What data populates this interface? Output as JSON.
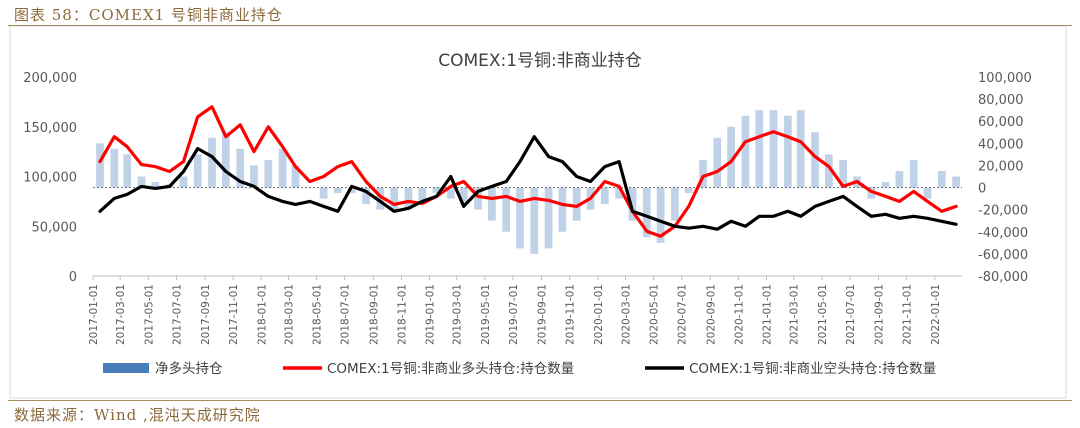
{
  "caption": "图表 58：COMEX1 号铜非商业持仓",
  "source": "数据来源：Wind ,混沌天成研究院",
  "chart_data": {
    "type": "line",
    "title": "COMEX:1号铜:非商业持仓",
    "y_left": {
      "min": 0,
      "max": 200000,
      "ticks": [
        "0",
        "50,000",
        "100,000",
        "150,000",
        "200,000"
      ]
    },
    "y_right": {
      "min": -80000,
      "max": 100000,
      "ticks": [
        "-80,000",
        "-60,000",
        "-40,000",
        "-20,000",
        "0",
        "20,000",
        "40,000",
        "60,000",
        "80,000",
        "100,000"
      ]
    },
    "x_labels": [
      "2017-01-01",
      "2017-03-01",
      "2017-05-01",
      "2017-07-01",
      "2017-09-01",
      "2017-11-01",
      "2018-01-01",
      "2018-03-01",
      "2018-05-01",
      "2018-07-01",
      "2018-09-01",
      "2018-11-01",
      "2019-01-01",
      "2019-03-01",
      "2019-05-01",
      "2019-07-01",
      "2019-09-01",
      "2019-11-01",
      "2020-01-01",
      "2020-03-01",
      "2020-05-01",
      "2020-07-01",
      "2020-09-01",
      "2020-11-01",
      "2021-01-01",
      "2021-03-01",
      "2021-05-01",
      "2021-07-01",
      "2021-09-01",
      "2021-11-01",
      "2022-01-01"
    ],
    "x_range": [
      "2017-01-01",
      "2022-03-01"
    ],
    "colors": {
      "net": "#4a7ebb",
      "long": "#ff0000",
      "short": "#000000"
    },
    "series": [
      {
        "name": "净多头持仓",
        "axis": "right",
        "style": "bar",
        "x": [
          "2017-01",
          "2017-02",
          "2017-03",
          "2017-04",
          "2017-05",
          "2017-06",
          "2017-07",
          "2017-08",
          "2017-09",
          "2017-10",
          "2017-11",
          "2017-12",
          "2018-01",
          "2018-02",
          "2018-03",
          "2018-04",
          "2018-05",
          "2018-06",
          "2018-07",
          "2018-08",
          "2018-09",
          "2018-10",
          "2018-11",
          "2018-12",
          "2019-01",
          "2019-02",
          "2019-03",
          "2019-04",
          "2019-05",
          "2019-06",
          "2019-07",
          "2019-08",
          "2019-09",
          "2019-10",
          "2019-11",
          "2019-12",
          "2020-01",
          "2020-02",
          "2020-03",
          "2020-04",
          "2020-05",
          "2020-06",
          "2020-07",
          "2020-08",
          "2020-09",
          "2020-10",
          "2020-11",
          "2020-12",
          "2021-01",
          "2021-02",
          "2021-03",
          "2021-04",
          "2021-05",
          "2021-06",
          "2021-07",
          "2021-08",
          "2021-09",
          "2021-10",
          "2021-11",
          "2021-12",
          "2022-01",
          "2022-02"
        ],
        "values": [
          40000,
          35000,
          30000,
          10000,
          5000,
          3000,
          10000,
          30000,
          45000,
          50000,
          35000,
          20000,
          25000,
          35000,
          20000,
          0,
          -10000,
          -5000,
          -5000,
          -15000,
          -20000,
          -20000,
          -20000,
          -15000,
          -5000,
          -10000,
          -15000,
          -20000,
          -30000,
          -40000,
          -55000,
          -60000,
          -55000,
          -40000,
          -30000,
          -20000,
          -15000,
          -10000,
          -30000,
          -45000,
          -50000,
          -30000,
          -5000,
          25000,
          45000,
          55000,
          65000,
          70000,
          70000,
          65000,
          70000,
          50000,
          30000,
          25000,
          10000,
          -10000,
          5000,
          15000,
          25000,
          -10000,
          15000,
          10000
        ]
      },
      {
        "name": "COMEX:1号铜:非商业多头持仓:持仓数量",
        "axis": "left",
        "style": "line",
        "x": [
          "2017-01",
          "2017-02",
          "2017-03",
          "2017-04",
          "2017-05",
          "2017-06",
          "2017-07",
          "2017-08",
          "2017-09",
          "2017-10",
          "2017-11",
          "2017-12",
          "2018-01",
          "2018-02",
          "2018-03",
          "2018-04",
          "2018-05",
          "2018-06",
          "2018-07",
          "2018-08",
          "2018-09",
          "2018-10",
          "2018-11",
          "2018-12",
          "2019-01",
          "2019-02",
          "2019-03",
          "2019-04",
          "2019-05",
          "2019-06",
          "2019-07",
          "2019-08",
          "2019-09",
          "2019-10",
          "2019-11",
          "2019-12",
          "2020-01",
          "2020-02",
          "2020-03",
          "2020-04",
          "2020-05",
          "2020-06",
          "2020-07",
          "2020-08",
          "2020-09",
          "2020-10",
          "2020-11",
          "2020-12",
          "2021-01",
          "2021-02",
          "2021-03",
          "2021-04",
          "2021-05",
          "2021-06",
          "2021-07",
          "2021-08",
          "2021-09",
          "2021-10",
          "2021-11",
          "2021-12",
          "2022-01",
          "2022-02"
        ],
        "values": [
          115000,
          140000,
          130000,
          112000,
          110000,
          105000,
          115000,
          160000,
          170000,
          140000,
          152000,
          125000,
          150000,
          130000,
          110000,
          95000,
          100000,
          110000,
          115000,
          95000,
          80000,
          72000,
          75000,
          73000,
          80000,
          90000,
          95000,
          80000,
          78000,
          80000,
          75000,
          78000,
          76000,
          72000,
          70000,
          78000,
          95000,
          90000,
          65000,
          45000,
          40000,
          50000,
          70000,
          100000,
          105000,
          115000,
          135000,
          140000,
          145000,
          140000,
          135000,
          120000,
          110000,
          90000,
          95000,
          85000,
          80000,
          75000,
          85000,
          75000,
          65000,
          70000
        ]
      },
      {
        "name": "COMEX:1号铜:非商业空头持仓:持仓数量",
        "axis": "left",
        "style": "line",
        "x": [
          "2017-01",
          "2017-02",
          "2017-03",
          "2017-04",
          "2017-05",
          "2017-06",
          "2017-07",
          "2017-08",
          "2017-09",
          "2017-10",
          "2017-11",
          "2017-12",
          "2018-01",
          "2018-02",
          "2018-03",
          "2018-04",
          "2018-05",
          "2018-06",
          "2018-07",
          "2018-08",
          "2018-09",
          "2018-10",
          "2018-11",
          "2018-12",
          "2019-01",
          "2019-02",
          "2019-03",
          "2019-04",
          "2019-05",
          "2019-06",
          "2019-07",
          "2019-08",
          "2019-09",
          "2019-10",
          "2019-11",
          "2019-12",
          "2020-01",
          "2020-02",
          "2020-03",
          "2020-04",
          "2020-05",
          "2020-06",
          "2020-07",
          "2020-08",
          "2020-09",
          "2020-10",
          "2020-11",
          "2020-12",
          "2021-01",
          "2021-02",
          "2021-03",
          "2021-04",
          "2021-05",
          "2021-06",
          "2021-07",
          "2021-08",
          "2021-09",
          "2021-10",
          "2021-11",
          "2021-12",
          "2022-01",
          "2022-02"
        ],
        "values": [
          65000,
          78000,
          82000,
          90000,
          88000,
          90000,
          105000,
          128000,
          120000,
          105000,
          95000,
          90000,
          80000,
          75000,
          72000,
          75000,
          70000,
          65000,
          90000,
          85000,
          75000,
          65000,
          68000,
          75000,
          80000,
          100000,
          70000,
          85000,
          90000,
          95000,
          115000,
          140000,
          120000,
          115000,
          100000,
          95000,
          110000,
          115000,
          65000,
          60000,
          55000,
          50000,
          48000,
          50000,
          47000,
          55000,
          50000,
          60000,
          60000,
          65000,
          60000,
          70000,
          75000,
          80000,
          70000,
          60000,
          62000,
          58000,
          60000,
          58000,
          55000,
          52000
        ]
      }
    ]
  }
}
